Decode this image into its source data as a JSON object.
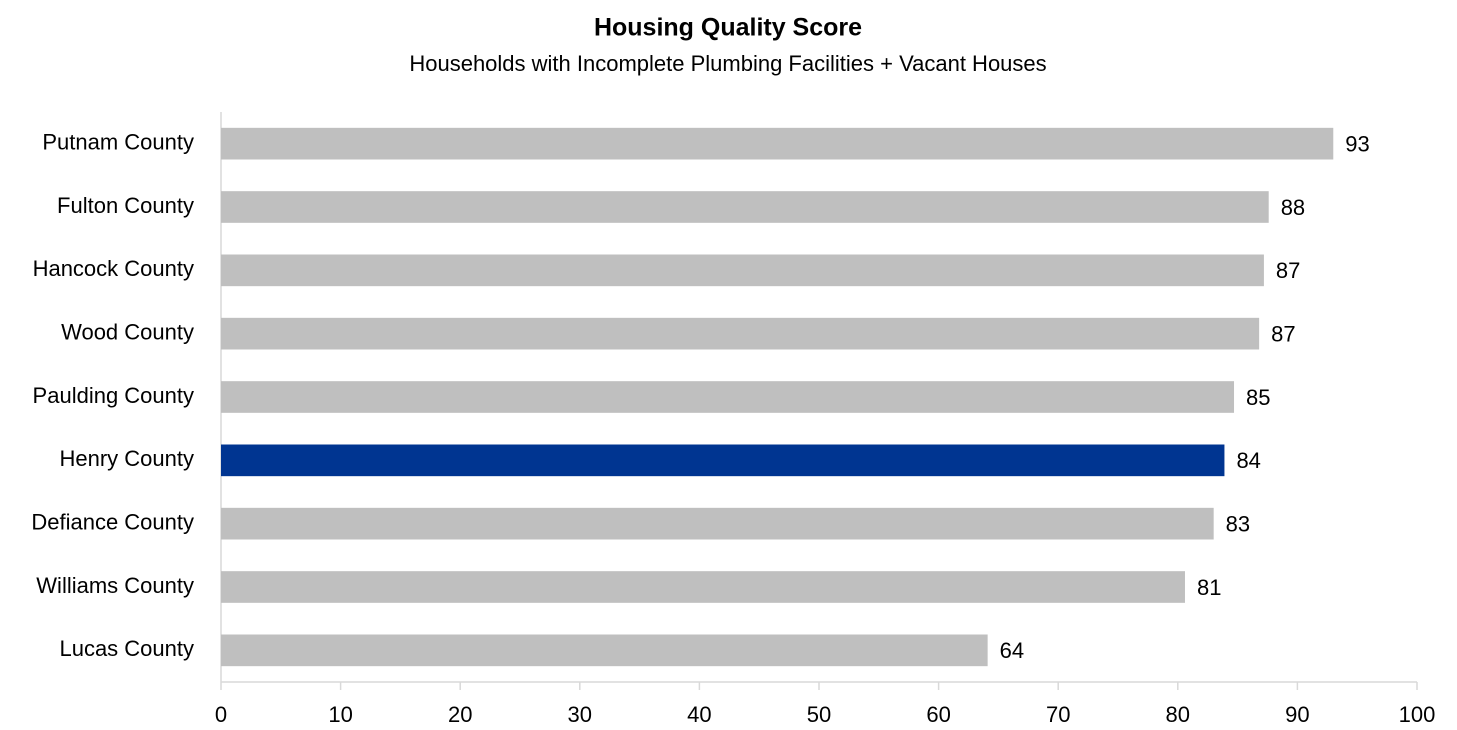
{
  "chart_data": {
    "type": "bar",
    "orientation": "horizontal",
    "title": "Housing Quality Score",
    "subtitle": "Households with Incomplete Plumbing Facilities + Vacant Houses",
    "categories": [
      "Putnam County",
      "Fulton County",
      "Hancock County",
      "Wood County",
      "Paulding County",
      "Henry County",
      "Defiance County",
      "Williams County",
      "Lucas County"
    ],
    "values": [
      93,
      87.6,
      87.2,
      86.8,
      84.7,
      83.9,
      83,
      80.6,
      64.1
    ],
    "value_labels": [
      "93",
      "88",
      "87",
      "87",
      "85",
      "84",
      "83",
      "81",
      "64"
    ],
    "colors": [
      "#bfbfbf",
      "#bfbfbf",
      "#bfbfbf",
      "#bfbfbf",
      "#bfbfbf",
      "#003591",
      "#bfbfbf",
      "#bfbfbf",
      "#bfbfbf"
    ],
    "xlim": [
      0,
      100
    ],
    "xticks": [
      0,
      10,
      20,
      30,
      40,
      50,
      60,
      70,
      80,
      90,
      100
    ],
    "grid": false
  }
}
